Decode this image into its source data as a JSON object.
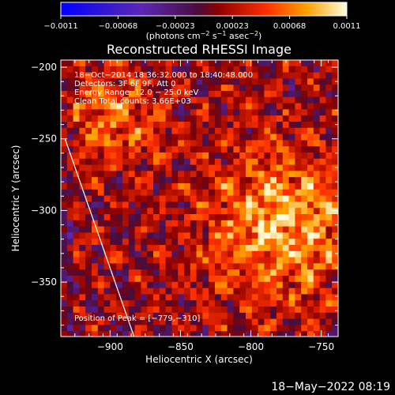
{
  "chart_data": {
    "type": "heatmap",
    "title": "Reconstructed RHESSI Image",
    "xlabel": "Heliocentric X (arcsec)",
    "ylabel": "Heliocentric Y (arcsec)",
    "xlim": [
      -935,
      -738
    ],
    "ylim": [
      -388,
      -195
    ],
    "x_ticks": [
      -900,
      -850,
      -800,
      -750
    ],
    "x_tick_labels": [
      "−900",
      "−850",
      "−800",
      "−750"
    ],
    "y_ticks": [
      -200,
      -250,
      -300,
      -350
    ],
    "y_tick_labels": [
      "−200",
      "−250",
      "−300",
      "−350"
    ],
    "colorbar": {
      "range": [
        -0.0011,
        0.0011
      ],
      "tick_labels": [
        "−0.0011",
        "−0.00068",
        "−0.00023",
        "0.00023",
        "0.00068",
        "0.0011"
      ],
      "unit_prefix": "(photons cm",
      "unit_sup1": "−2",
      "unit_mid": " s",
      "unit_sup2": "−1",
      "unit_mid2": " asec",
      "unit_sup3": "−2",
      "unit_suffix": ")"
    },
    "annotations": [
      "18−Oct−2014 18:36:32.000 to 18:40:48.000",
      "Detectors: 3F 6F 9F, Att 0",
      "Energy Range: 12.0 − 25.0 keV",
      "Clean    Total counts: 3.66E+03"
    ],
    "peak_label": "Position of Peak = [−779,−310]",
    "peak_position": [
      -779,
      -310
    ],
    "limb_line": {
      "from": [
        -932,
        -250
      ],
      "to": [
        -883,
        -388
      ]
    }
  },
  "footer": {
    "timestamp": "18−May−2022 08:19"
  }
}
